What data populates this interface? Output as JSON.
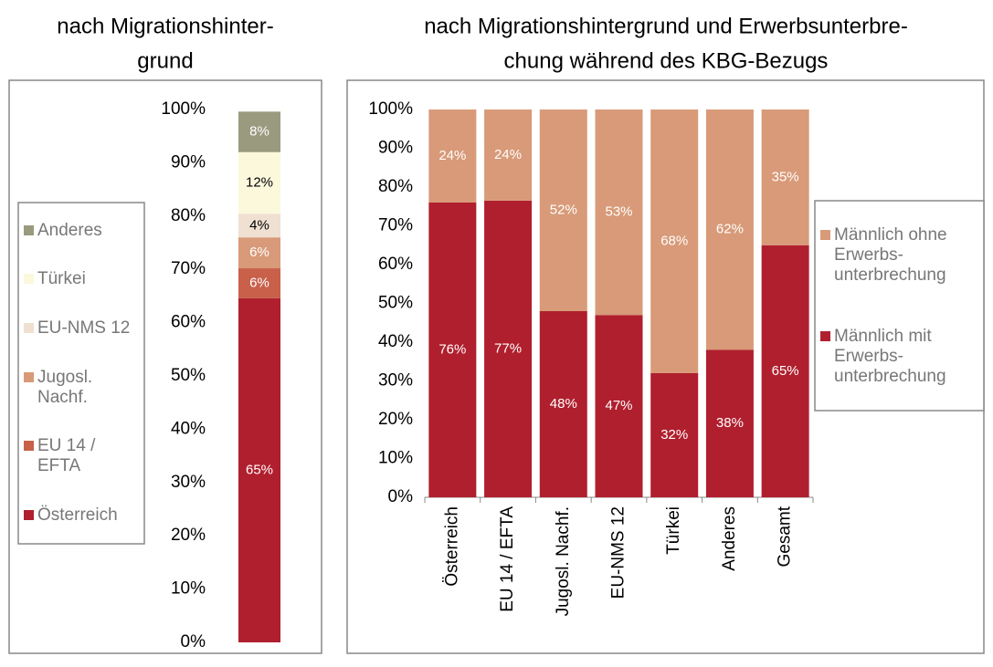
{
  "chart_data": [
    {
      "type": "stacked-bar",
      "title": [
        "nach Migrationshinter-",
        "grund"
      ],
      "ylim": [
        0,
        100
      ],
      "yticks": [
        {
          "value": 0,
          "label": "0%"
        },
        {
          "value": 10,
          "label": "10%"
        },
        {
          "value": 20,
          "label": "20%"
        },
        {
          "value": 30,
          "label": "30%"
        },
        {
          "value": 40,
          "label": "40%"
        },
        {
          "value": 50,
          "label": "50%"
        },
        {
          "value": 60,
          "label": "60%"
        },
        {
          "value": 70,
          "label": "70%"
        },
        {
          "value": 80,
          "label": "80%"
        },
        {
          "value": 90,
          "label": "90%"
        },
        {
          "value": 100,
          "label": "100%"
        }
      ],
      "series": [
        {
          "name": "Österreich",
          "color": "#b01f2e",
          "values": [
            64.6
          ],
          "value_labels": [
            "65%"
          ]
        },
        {
          "name": "EU 14 / EFTA",
          "color": "#c8604a",
          "values": [
            5.6
          ],
          "value_labels": [
            "6%"
          ]
        },
        {
          "name": "Jugosl. Nachf.",
          "color": "#d89a78",
          "values": [
            5.8
          ],
          "value_labels": [
            "6%"
          ]
        },
        {
          "name": "EU-NMS 12",
          "color": "#efe0d2",
          "values": [
            4.4
          ],
          "value_labels": [
            "4%"
          ]
        },
        {
          "name": "Türkei",
          "color": "#fbf8dc",
          "values": [
            11.6
          ],
          "value_labels": [
            "12%"
          ]
        },
        {
          "name": "Anderes",
          "color": "#9a9a7e",
          "values": [
            7.6
          ],
          "value_labels": [
            "8%"
          ]
        }
      ]
    },
    {
      "type": "stacked-bar",
      "title": [
        "nach Migrationshintergrund und Erwerbsunterbre-",
        "chung während des KBG-Bezugs"
      ],
      "categories": [
        "Österreich",
        "EU 14 / EFTA",
        "Jugosl. Nachf.",
        "EU-NMS 12",
        "Türkei",
        "Anderes",
        "Gesamt"
      ],
      "ylim": [
        0,
        100
      ],
      "yticks": [
        {
          "value": 0,
          "label": "0%"
        },
        {
          "value": 10,
          "label": "10%"
        },
        {
          "value": 20,
          "label": "20%"
        },
        {
          "value": 30,
          "label": "30%"
        },
        {
          "value": 40,
          "label": "40%"
        },
        {
          "value": 50,
          "label": "50%"
        },
        {
          "value": 60,
          "label": "60%"
        },
        {
          "value": 70,
          "label": "70%"
        },
        {
          "value": 80,
          "label": "80%"
        },
        {
          "value": 90,
          "label": "90%"
        },
        {
          "value": 100,
          "label": "100%"
        }
      ],
      "series": [
        {
          "name": "Männlich mit Erwerbs-unterbrechung",
          "color": "#b01f2e",
          "values": [
            76,
            76.5,
            48,
            47,
            32,
            38,
            65
          ],
          "value_labels": [
            "76%",
            "77%",
            "48%",
            "47%",
            "32%",
            "38%",
            "65%"
          ]
        },
        {
          "name": "Männlich ohne Erwerbs-unterbrechung",
          "color": "#d89a78",
          "values": [
            24,
            23.5,
            52,
            53,
            68,
            62,
            35
          ],
          "value_labels": [
            "24%",
            "24%",
            "52%",
            "53%",
            "68%",
            "62%",
            "35%"
          ]
        }
      ]
    }
  ]
}
